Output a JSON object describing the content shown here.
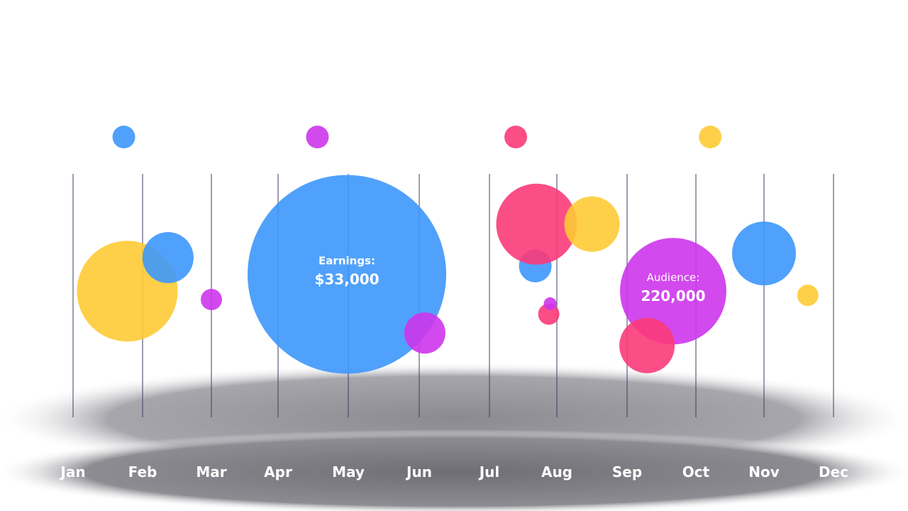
{
  "colors": {
    "blue": "#3d97fb",
    "magenta": "#cd35ec",
    "pink": "#fb3a79",
    "yellow": "#fecb35",
    "gridline": "#3a3f63",
    "label": "#ffffff"
  },
  "chart_data": {
    "type": "scatter",
    "categories": [
      "Jan",
      "Feb",
      "Mar",
      "Apr",
      "May",
      "Jun",
      "Jul",
      "Aug",
      "Sep",
      "Oct",
      "Nov",
      "Dec"
    ],
    "legend": [
      {
        "color": "blue",
        "x": 1.73
      },
      {
        "color": "magenta",
        "x": 4.56
      },
      {
        "color": "pink",
        "x": 7.39
      },
      {
        "color": "yellow",
        "x": 10.21
      }
    ],
    "bubbles": [
      {
        "x": 1.78,
        "y": 0.44,
        "size": 71,
        "color": "yellow"
      },
      {
        "x": 2.37,
        "y": 0.6,
        "size": 36,
        "color": "blue"
      },
      {
        "x": 3.0,
        "y": 0.4,
        "size": 15,
        "color": "magenta"
      },
      {
        "x": 4.98,
        "y": 0.52,
        "size": 140,
        "color": "blue",
        "label": "Earnings:",
        "value": "$33,000"
      },
      {
        "x": 6.08,
        "y": 0.24,
        "size": 29,
        "color": "magenta"
      },
      {
        "x": 7.68,
        "y": 0.56,
        "size": 23,
        "color": "blue"
      },
      {
        "x": 7.88,
        "y": 0.33,
        "size": 15,
        "color": "pink"
      },
      {
        "x": 7.7,
        "y": 0.76,
        "size": 57,
        "color": "pink"
      },
      {
        "x": 8.5,
        "y": 0.76,
        "size": 39,
        "color": "yellow"
      },
      {
        "x": 7.9,
        "y": 0.38,
        "size": 9,
        "color": "magenta"
      },
      {
        "x": 9.67,
        "y": 0.44,
        "size": 75,
        "color": "magenta",
        "label": "Audience:",
        "value": "220,000"
      },
      {
        "x": 9.29,
        "y": 0.18,
        "size": 39,
        "color": "pink"
      },
      {
        "x": 11.0,
        "y": 0.62,
        "size": 45,
        "color": "blue"
      },
      {
        "x": 11.63,
        "y": 0.42,
        "size": 15,
        "color": "yellow"
      }
    ]
  }
}
